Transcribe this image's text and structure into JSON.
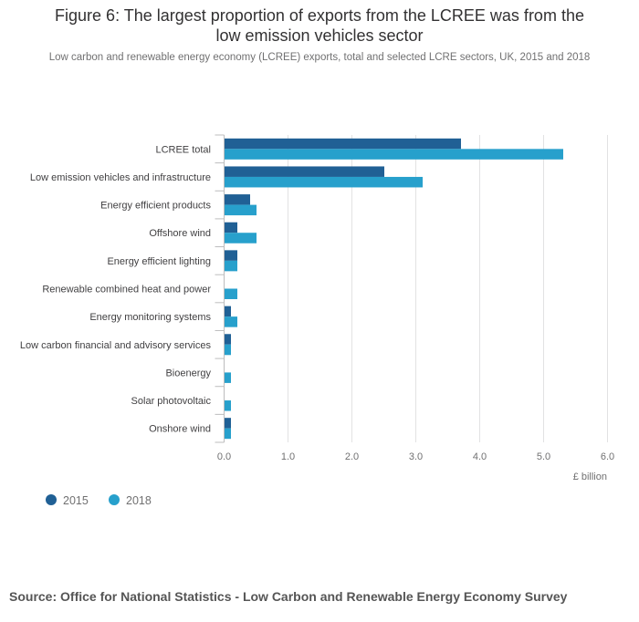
{
  "title_line1": "Figure 6: The largest proportion of exports from the LCREE was from the",
  "title_line2": "low emission vehicles sector",
  "subtitle": "Low carbon and renewable energy economy (LCREE) exports, total and selected LCRE sectors, UK, 2015 and 2018",
  "source": "Source: Office for National Statistics - Low Carbon and Renewable Energy Economy Survey",
  "chart_data": {
    "type": "bar",
    "orientation": "horizontal",
    "categories": [
      "LCREE total",
      "Low emission vehicles and infrastructure",
      "Energy efficient products",
      "Offshore wind",
      "Energy efficient lighting",
      "Renewable combined heat and power",
      "Energy monitoring systems",
      "Low carbon financial and advisory services",
      "Bioenergy",
      "Solar photovoltaic",
      "Onshore wind"
    ],
    "series": [
      {
        "name": "2015",
        "color": "#206095",
        "values": [
          3.7,
          2.5,
          0.4,
          0.2,
          0.2,
          0.0,
          0.1,
          0.1,
          0.0,
          0.0,
          0.1
        ]
      },
      {
        "name": "2018",
        "color": "#27a0cc",
        "values": [
          5.3,
          3.1,
          0.5,
          0.5,
          0.2,
          0.2,
          0.2,
          0.1,
          0.1,
          0.1,
          0.1
        ]
      }
    ],
    "xlim": [
      0,
      6
    ],
    "xticks": [
      "0.0",
      "1.0",
      "2.0",
      "3.0",
      "4.0",
      "5.0",
      "6.0"
    ],
    "xlabel": "£ billion",
    "grid": true,
    "legend_position": "bottom-left"
  }
}
